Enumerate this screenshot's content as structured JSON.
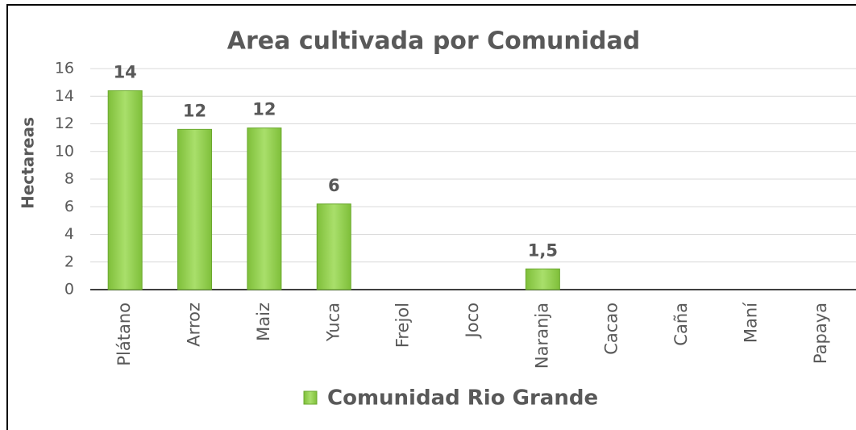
{
  "chart_data": {
    "type": "bar",
    "title": "Area cultivada por Comunidad",
    "y_label": "Hectareas",
    "categories": [
      "Plátano",
      "Arroz",
      "Maiz",
      "Yuca",
      "Frejol",
      "Joco",
      "Naranja",
      "Cacao",
      "Caña",
      "Maní",
      "Papaya"
    ],
    "series": [
      {
        "name": "Comunidad Rio Grande",
        "color": "#92d050",
        "values": [
          14.4,
          11.6,
          11.7,
          6.2,
          null,
          null,
          1.5,
          null,
          null,
          null,
          null
        ],
        "value_labels": [
          "14",
          "12",
          "12",
          "6",
          null,
          null,
          "1,5",
          null,
          null,
          null,
          null
        ]
      }
    ],
    "ylim": [
      0,
      16
    ],
    "yticks": [
      0,
      2,
      4,
      6,
      8,
      10,
      12,
      14,
      16
    ],
    "grid": true,
    "legend": "bottom"
  }
}
